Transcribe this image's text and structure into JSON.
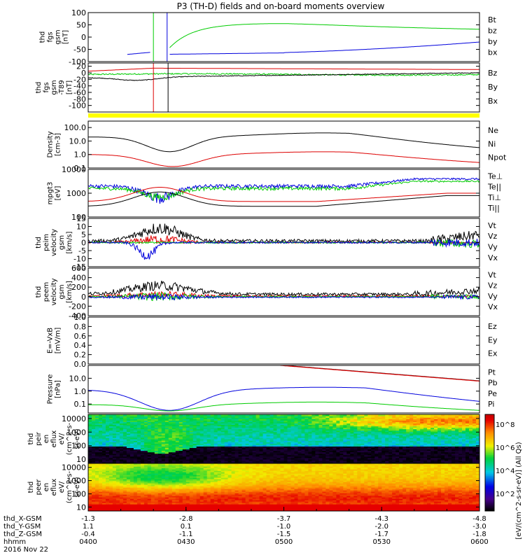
{
  "chart_data": {
    "type": "line",
    "title": "P3 (TH-D) fields and on-board moments overview",
    "date_label": "2016 Nov 22",
    "colors": {
      "black": "#000000",
      "red": "#dd0000",
      "green": "#00cc00",
      "blue": "#0000dd",
      "yellow": "#ffff00"
    },
    "xaxis": {
      "tick_labels": [
        "0400",
        "0430",
        "0500",
        "0530",
        "0600"
      ],
      "rows": [
        {
          "name": "thd_X-GSM",
          "values": [
            "-1.3",
            "-2.8",
            "-3.7",
            "-4.3",
            "-4.8"
          ]
        },
        {
          "name": "thd_Y-GSM",
          "values": [
            "1.1",
            "0.1",
            "-1.0",
            "-2.0",
            "-3.0"
          ]
        },
        {
          "name": "thd_Z-GSM",
          "values": [
            "-0.4",
            "-1.1",
            "-1.5",
            "-1.7",
            "-1.8"
          ]
        },
        {
          "name": "hhmm",
          "values": [
            "0400",
            "0430",
            "0500",
            "0530",
            "0600"
          ]
        }
      ],
      "x_minutes": [
        0,
        30,
        60,
        90,
        120
      ]
    },
    "panels": [
      {
        "id": "fgs-gsm",
        "ylabel_lines": [
          "thd",
          "fgs",
          "gsm",
          "[nT]"
        ],
        "ylim": [
          -100,
          100
        ],
        "yticks": [
          "100",
          "50",
          "0",
          "-50",
          "-100"
        ],
        "legend": [
          {
            "name": "Bt",
            "color": "black"
          },
          {
            "name": "bz",
            "color": "red"
          },
          {
            "name": "by",
            "color": "green"
          },
          {
            "name": "bx",
            "color": "blue"
          }
        ]
      },
      {
        "id": "fgs-gsm-t89",
        "ylabel_lines": [
          "thd",
          "fgs",
          "gsm",
          "-T89",
          "[nT]"
        ],
        "ylim": [
          -120,
          30
        ],
        "yticks": [
          "20",
          "0",
          "-20",
          "-40",
          "-60",
          "-80",
          "-100"
        ],
        "legend": [
          {
            "name": "Bz",
            "color": "red"
          },
          {
            "name": "By",
            "color": "green"
          },
          {
            "name": "Bx",
            "color": "black"
          }
        ]
      },
      {
        "id": "density",
        "ylabel_lines": [
          "Density",
          "[cm-3]"
        ],
        "log": true,
        "ylim": [
          0.1,
          300
        ],
        "yticks": [
          "100.0",
          "10.0",
          "1.0",
          "0.1"
        ],
        "legend": [
          {
            "name": "Ne",
            "color": "red"
          },
          {
            "name": "Ni",
            "color": "black"
          },
          {
            "name": "Npot",
            "color": "blue"
          }
        ]
      },
      {
        "id": "temperature",
        "ylabel_lines": [
          "mpgt3",
          "[eV]"
        ],
        "log": true,
        "ylim": [
          100,
          10000
        ],
        "yticks": [
          "10000",
          "1000",
          "100"
        ],
        "legend": [
          {
            "name": "Te⊥",
            "color": "red"
          },
          {
            "name": "Te||",
            "color": "black"
          },
          {
            "name": "Ti⊥",
            "color": "blue"
          },
          {
            "name": "Ti||",
            "color": "green"
          }
        ]
      },
      {
        "id": "ion-velocity",
        "ylabel_lines": [
          "thd",
          "peim",
          "velocity",
          "gsm",
          "[km/s]"
        ],
        "ylim": [
          -15,
          15
        ],
        "yticks": [
          "15",
          "10",
          "5",
          "0",
          "-5",
          "-10",
          "-15"
        ],
        "legend": [
          {
            "name": "Vt",
            "color": "black"
          },
          {
            "name": "Vz",
            "color": "red"
          },
          {
            "name": "Vy",
            "color": "green"
          },
          {
            "name": "Vx",
            "color": "blue"
          }
        ]
      },
      {
        "id": "electron-velocity",
        "ylabel_lines": [
          "thd",
          "peem",
          "velocity",
          "gsm",
          "[km/s]"
        ],
        "ylim": [
          -400,
          600
        ],
        "yticks": [
          "600",
          "400",
          "200",
          "0",
          "-200",
          "-400"
        ],
        "legend": [
          {
            "name": "Vt",
            "color": "black"
          },
          {
            "name": "Vz",
            "color": "red"
          },
          {
            "name": "Vy",
            "color": "green"
          },
          {
            "name": "Vx",
            "color": "blue"
          }
        ]
      },
      {
        "id": "efield",
        "ylabel_lines": [
          "E=-VxB",
          "[mV/m]"
        ],
        "ylim": [
          0,
          1
        ],
        "yticks": [
          "1.0",
          "0.8",
          "0.6",
          "0.4",
          "0.2",
          "0.0"
        ],
        "legend": [
          {
            "name": "Ez",
            "color": "red"
          },
          {
            "name": "Ey",
            "color": "green"
          },
          {
            "name": "Ex",
            "color": "blue"
          }
        ]
      },
      {
        "id": "pressure",
        "ylabel_lines": [
          "Pressure",
          "[nPa]"
        ],
        "log": true,
        "ylim": [
          0.02,
          100
        ],
        "yticks": [
          "10.0",
          "1.0",
          "0.1"
        ],
        "legend": [
          {
            "name": "Pt",
            "color": "black"
          },
          {
            "name": "Pb",
            "color": "red"
          },
          {
            "name": "Pe",
            "color": "green"
          },
          {
            "name": "Pi",
            "color": "blue"
          }
        ]
      },
      {
        "id": "peir-spec",
        "ylabel_lines": [
          "thd",
          "peir",
          "en",
          "eflux",
          "eV/",
          "(cm^2-s-",
          "sr-eV)"
        ],
        "log": true,
        "ylim": [
          5,
          20000
        ],
        "yticks": [
          "10000",
          "1000",
          "100",
          "10"
        ],
        "spectrogram": true
      },
      {
        "id": "peer-spec",
        "ylabel_lines": [
          "thd",
          "peer",
          "en",
          "eflux",
          "eV/",
          "(cm^2-s-",
          "sr-eV)"
        ],
        "log": true,
        "ylim": [
          5,
          20000
        ],
        "yticks": [
          "10000",
          "1000",
          "100",
          "10"
        ],
        "spectrogram": true
      }
    ],
    "colorbar": {
      "label": "[eV/(cm^2-s-sr-eV)] (All Qs)",
      "tick_labels": [
        "10^8",
        "10^6",
        "10^4",
        "10^2"
      ]
    }
  }
}
